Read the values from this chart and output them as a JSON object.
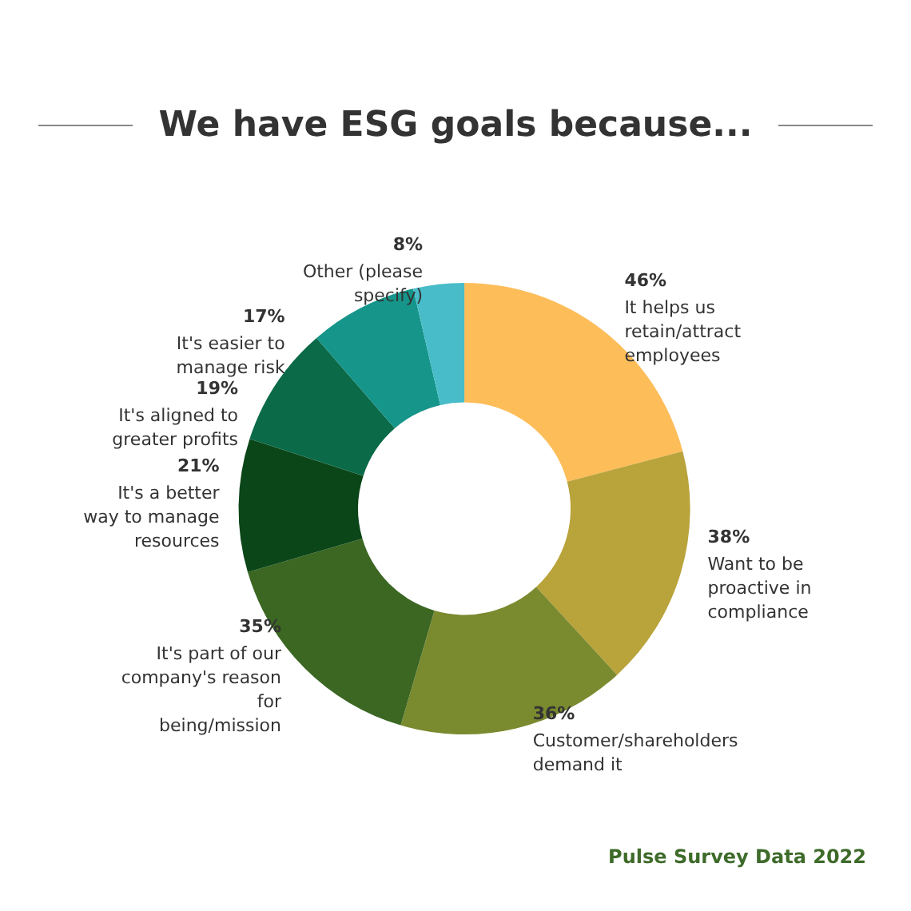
{
  "chart_data": {
    "type": "donut",
    "title": "We have ESG goals because...",
    "categories": [
      "It helps us retain/attract employees",
      "Want to be proactive in compliance",
      "Customer/shareholders demand it",
      "It's part of our company's reason for being/mission",
      "It's a better way to manage resources",
      "It's aligned to greater profits",
      "It's easier to manage risk",
      "Other (please specify)"
    ],
    "values": [
      46,
      38,
      36,
      35,
      21,
      19,
      17,
      8
    ],
    "colors": [
      "#fdbd59",
      "#b9a33b",
      "#7a8a2f",
      "#3b6722",
      "#0b4619",
      "#0b6a48",
      "#16958a",
      "#48bcc8"
    ],
    "value_labels": [
      "46%",
      "38%",
      "36%",
      "35%",
      "21%",
      "19%",
      "17%",
      "8%"
    ],
    "annotations": [
      "Pulse Survey Data 2022"
    ]
  }
}
